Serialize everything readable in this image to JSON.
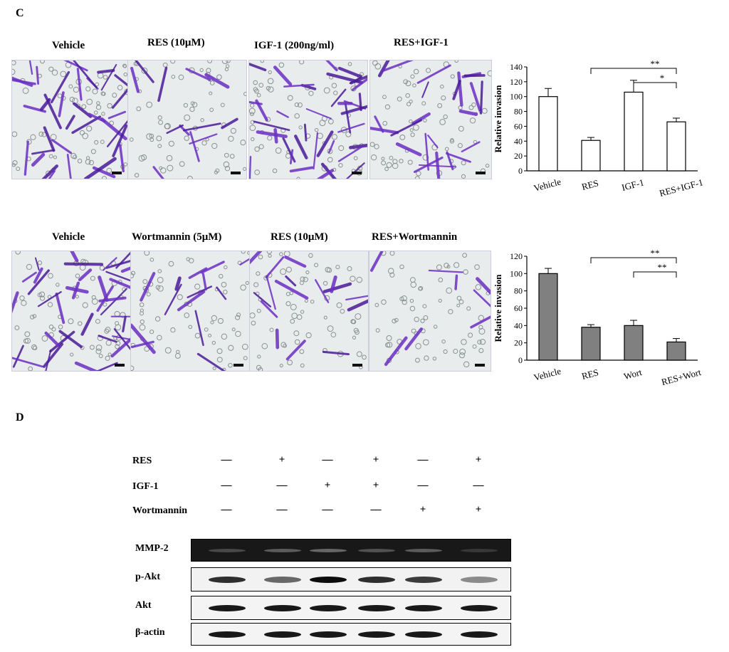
{
  "panel_c": {
    "letter": "C",
    "row1": {
      "titles": [
        "Vehicle",
        "RES (10μM)",
        "IGF-1 (200ng/ml)",
        "RES+IGF-1"
      ],
      "chart_data": {
        "type": "bar",
        "categories": [
          "Vehicle",
          "RES",
          "IGF-1",
          "RES+IGF-1"
        ],
        "values": [
          100,
          41,
          106,
          66
        ],
        "errors": [
          11,
          4,
          16,
          5
        ],
        "ylabel": "Relative invasion",
        "ylim": [
          0,
          140
        ],
        "yticks": [
          0,
          20,
          40,
          60,
          80,
          100,
          120,
          140
        ],
        "bar_color": "#ffffff",
        "significance": [
          {
            "from": "RES",
            "to": "RES+IGF-1",
            "label": "**"
          },
          {
            "from": "IGF-1",
            "to": "RES+IGF-1",
            "label": "*"
          }
        ]
      }
    },
    "row2": {
      "titles": [
        "Vehicle",
        "Wortmannin (5μM)",
        "RES (10μM)",
        "RES+Wortmannin"
      ],
      "chart_data": {
        "type": "bar",
        "categories": [
          "Vehicle",
          "RES",
          "Wort",
          "RES+Wort"
        ],
        "values": [
          100,
          38,
          40,
          21
        ],
        "errors": [
          6,
          3,
          6,
          4
        ],
        "ylabel": "Relative invasion",
        "ylim": [
          0,
          120
        ],
        "yticks": [
          0,
          20,
          40,
          60,
          80,
          100,
          120
        ],
        "bar_color": "#808080",
        "significance": [
          {
            "from": "RES",
            "to": "RES+Wort",
            "label": "**"
          },
          {
            "from": "Wort",
            "to": "RES+Wort",
            "label": "**"
          }
        ]
      }
    }
  },
  "panel_d": {
    "letter": "D",
    "treatments": [
      {
        "label": "RES",
        "signs": [
          "—",
          "+",
          "—",
          "+",
          "—",
          "+"
        ]
      },
      {
        "label": "IGF-1",
        "signs": [
          "—",
          "—",
          "+",
          "+",
          "—",
          "—"
        ]
      },
      {
        "label": "Wortmannin",
        "signs": [
          "—",
          "—",
          "—",
          "—",
          "+",
          "+"
        ]
      }
    ],
    "blots": [
      {
        "label": "MMP-2",
        "intensities": [
          0.35,
          0.45,
          0.5,
          0.4,
          0.45,
          0.25
        ]
      },
      {
        "label": "p-Akt",
        "intensities": [
          0.85,
          0.6,
          1.0,
          0.85,
          0.8,
          0.45
        ]
      },
      {
        "label": "Akt",
        "intensities": [
          0.95,
          0.95,
          0.95,
          0.95,
          0.95,
          0.95
        ]
      },
      {
        "label": "β-actin",
        "intensities": [
          0.95,
          0.95,
          0.95,
          0.95,
          0.95,
          0.95
        ]
      }
    ]
  }
}
